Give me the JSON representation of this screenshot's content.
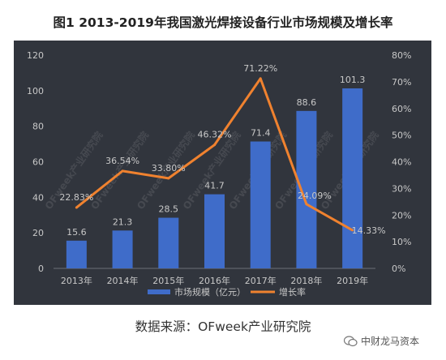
{
  "title": "图1 2013-2019年我国激光焊接设备行业市场规模及增长率",
  "source": "数据来源：OFweek产业研究院",
  "brand": "中财龙马资本",
  "watermark_text": "OFweek产业研究院",
  "colors": {
    "background": "#31353d",
    "bar": "#3f6cc9",
    "line": "#f0822f",
    "axis_text": "#c8c8c8",
    "grid": "#4a4e56"
  },
  "chart_data": {
    "type": "bar",
    "categories": [
      "2013年",
      "2014年",
      "2015年",
      "2016年",
      "2017年",
      "2018年",
      "2019年"
    ],
    "series": [
      {
        "name": "市场规模（亿元）",
        "type": "bar",
        "axis": "left",
        "values": [
          15.6,
          21.3,
          28.5,
          41.7,
          71.4,
          88.6,
          101.3
        ],
        "labels": [
          "15.6",
          "21.3",
          "28.5",
          "41.7",
          "71.4",
          "88.6",
          "101.3"
        ]
      },
      {
        "name": "增长率",
        "type": "line",
        "axis": "right",
        "values": [
          22.83,
          36.54,
          33.8,
          46.32,
          71.22,
          24.09,
          14.33
        ],
        "labels": [
          "22.83%",
          "36.54%",
          "33.80%",
          "46.32%",
          "71.22%",
          "24.09%",
          "14.33%"
        ]
      }
    ],
    "yleft": {
      "lim": [
        0,
        120
      ],
      "ticks": [
        "0",
        "20",
        "40",
        "60",
        "80",
        "100",
        "120"
      ]
    },
    "yright": {
      "lim": [
        0,
        80
      ],
      "ticks": [
        "0%",
        "10%",
        "20%",
        "30%",
        "40%",
        "50%",
        "60%",
        "70%",
        "80%"
      ]
    },
    "legend_position": "bottom",
    "grid": false
  }
}
